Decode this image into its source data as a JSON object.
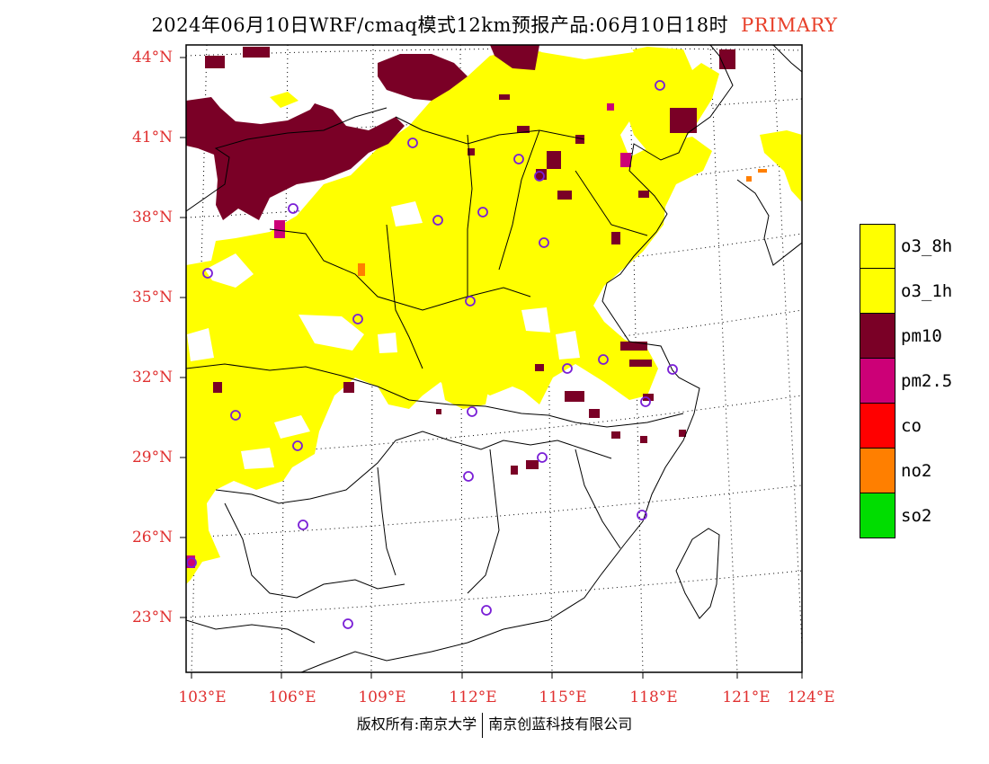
{
  "header": {
    "title": "2024年06月10日WRF/cmaq模式12km预报产品:06月10日18时",
    "product": "PRIMARY"
  },
  "axes": {
    "lat_labels": [
      "44°N",
      "41°N",
      "38°N",
      "35°N",
      "32°N",
      "29°N",
      "26°N",
      "23°N"
    ],
    "lon_labels": [
      "103°E",
      "106°E",
      "109°E",
      "112°E",
      "115°E",
      "118°E",
      "121°E",
      "124°E"
    ]
  },
  "legend": {
    "items": [
      {
        "label": "o3_8h",
        "color": "#ffff00"
      },
      {
        "label": "o3_1h",
        "color": "#ffff00"
      },
      {
        "label": "pm10",
        "color": "#7a0026"
      },
      {
        "label": "pm2.5",
        "color": "#cc0077"
      },
      {
        "label": "co",
        "color": "#ff0000"
      },
      {
        "label": "no2",
        "color": "#ff7f00"
      },
      {
        "label": "so2",
        "color": "#00dd00"
      }
    ]
  },
  "colors": {
    "axis_label": "#e03030",
    "station_marker": "#7a1fd6",
    "o3": "#ffff00",
    "pm10": "#7a0026",
    "pm25": "#cc0077",
    "no2": "#ff7f00"
  },
  "footer": {
    "left": "版权所有:南京大学",
    "right": "南京创蓝科技有限公司"
  }
}
